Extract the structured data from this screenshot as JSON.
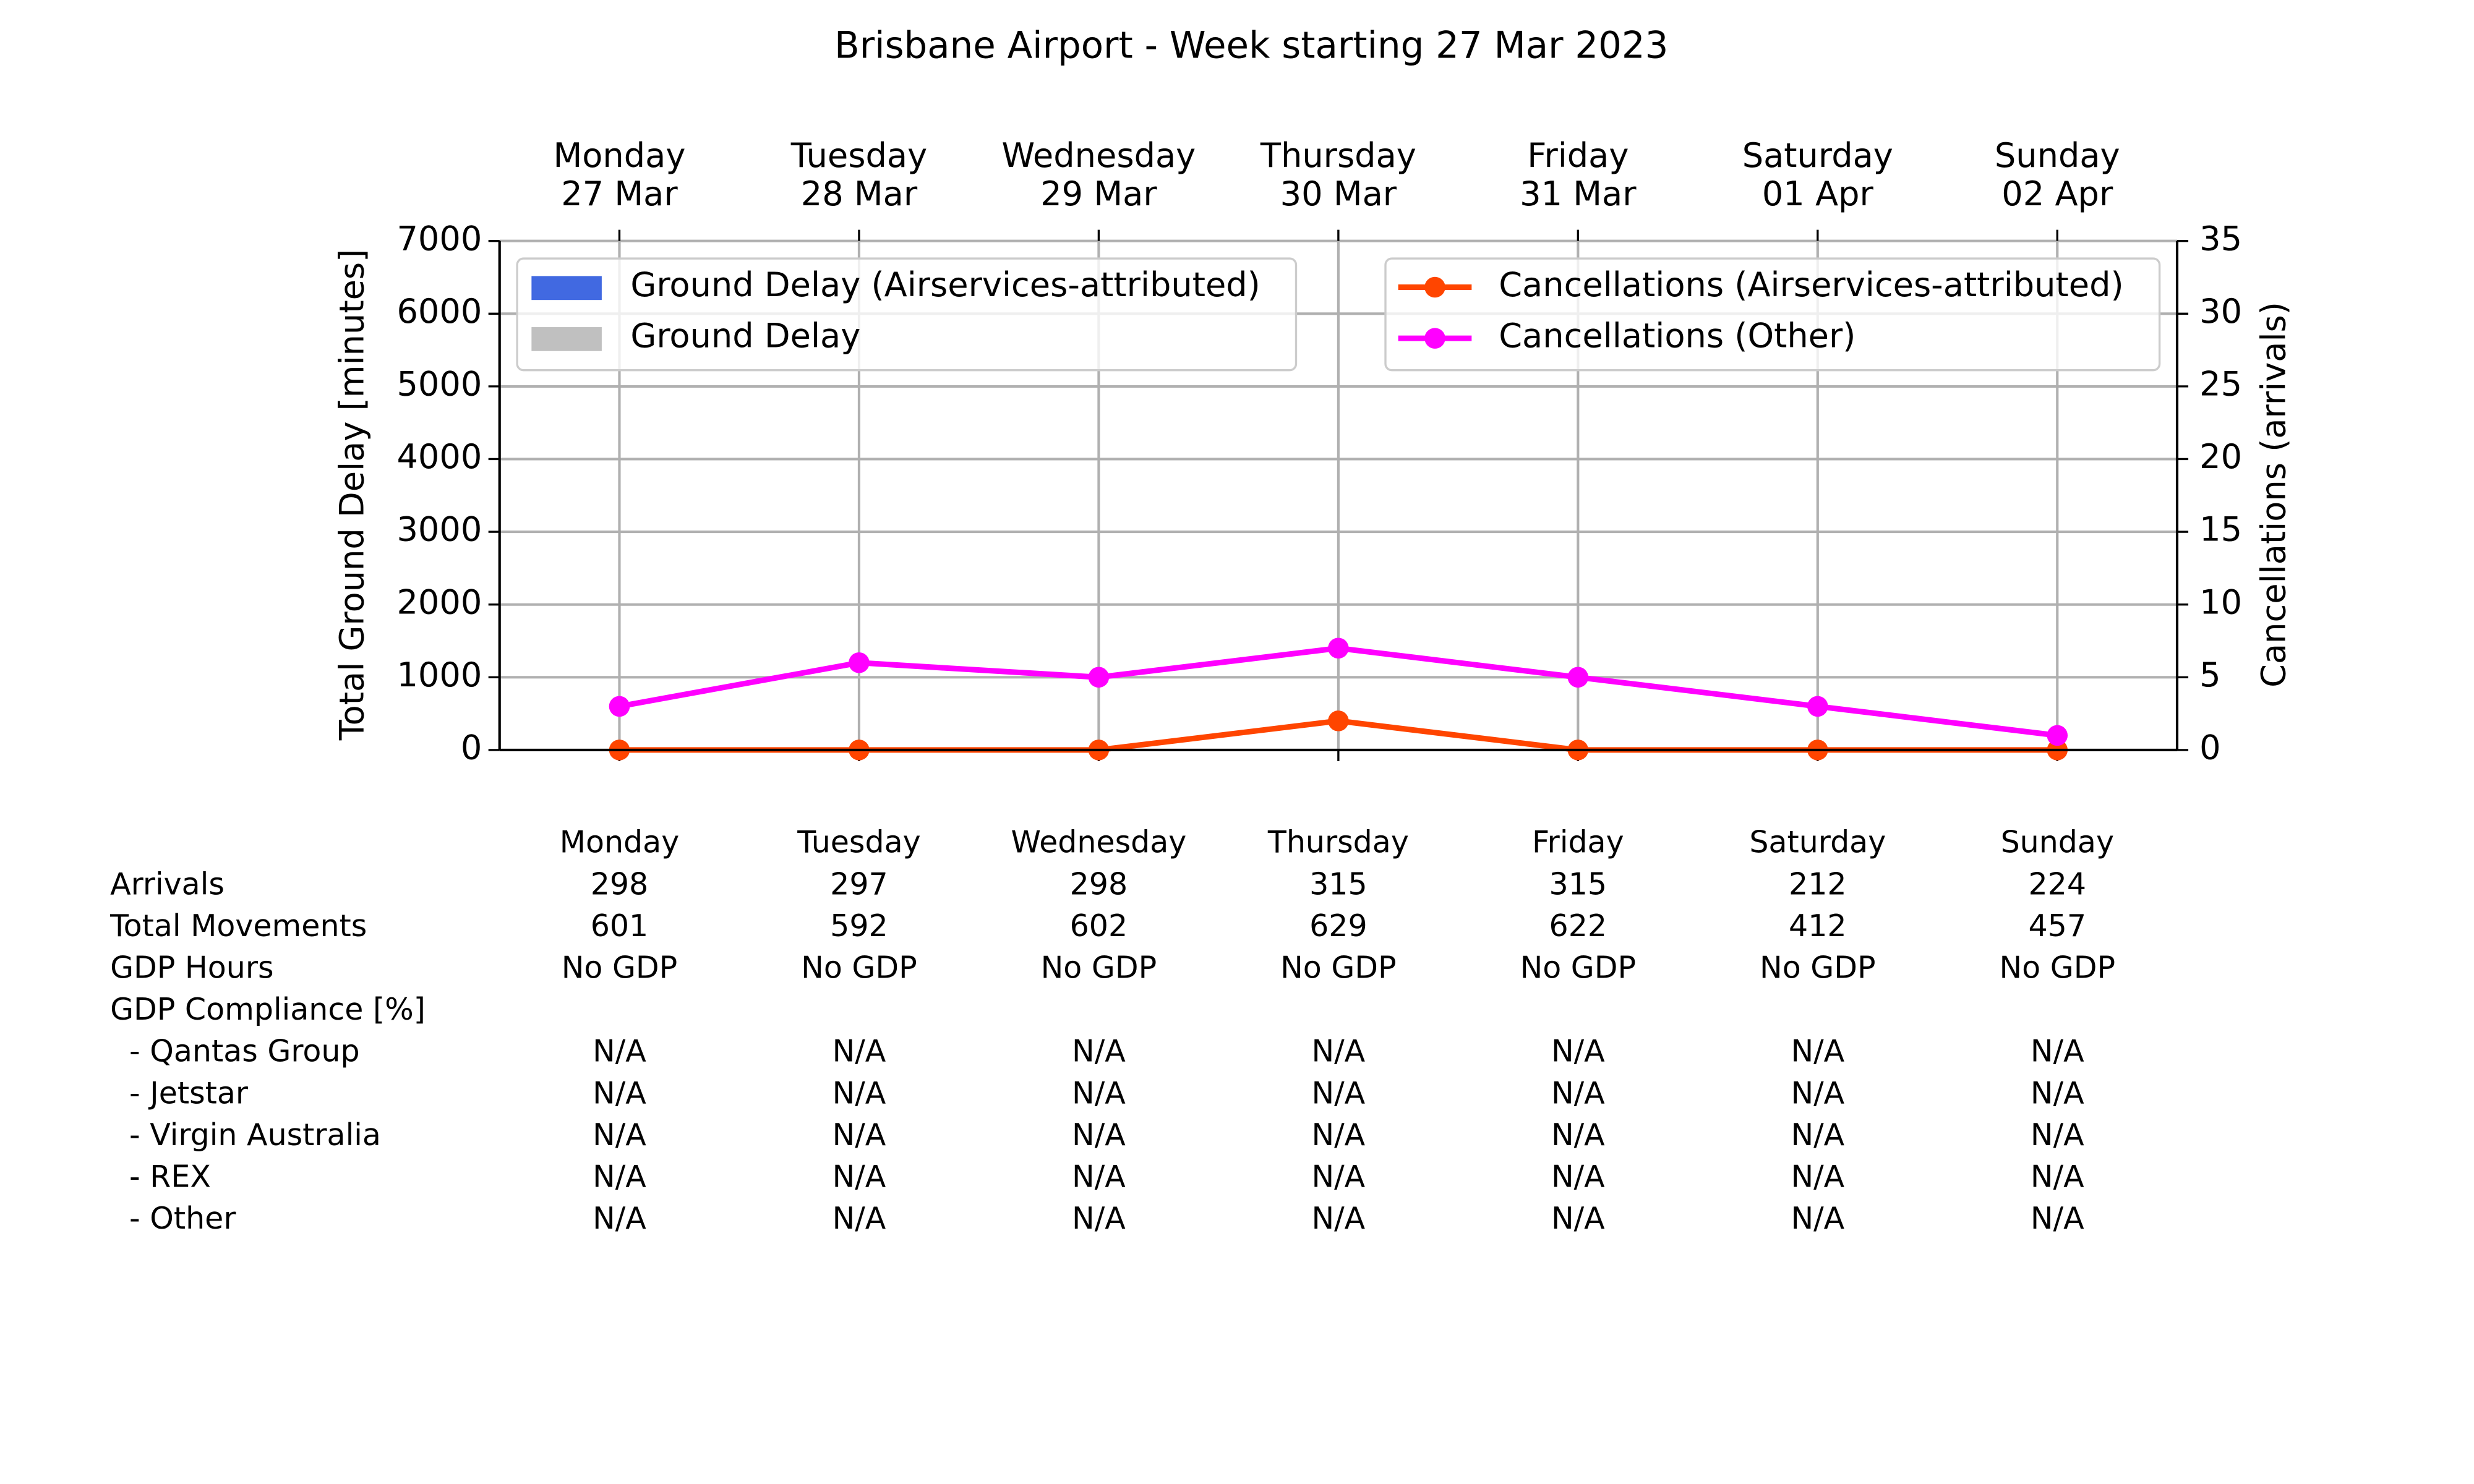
{
  "chart_data": {
    "type": "bar",
    "title": "Brisbane Airport - Week starting 27 Mar 2023",
    "categories": [
      "Monday",
      "Tuesday",
      "Wednesday",
      "Thursday",
      "Friday",
      "Saturday",
      "Sunday"
    ],
    "dates": [
      "27 Mar",
      "28 Mar",
      "29 Mar",
      "30 Mar",
      "31 Mar",
      "01 Apr",
      "02 Apr"
    ],
    "y_label": "Total Ground Delay [minutes]",
    "y2_label": "Cancellations (arrivals)",
    "ylim": [
      0,
      7000
    ],
    "yticks": [
      0,
      1000,
      2000,
      3000,
      4000,
      5000,
      6000,
      7000
    ],
    "y2lim": [
      0,
      35
    ],
    "y2ticks": [
      0,
      5,
      10,
      15,
      20,
      25,
      30,
      35
    ],
    "grid": true,
    "legend": "upper left",
    "legend2": "upper right",
    "series": [
      {
        "name": "Ground Delay (Airservices-attributed)",
        "type": "bar",
        "color": "#4169e1",
        "values": [
          0,
          0,
          0,
          0,
          0,
          0,
          0
        ]
      },
      {
        "name": "Ground Delay",
        "type": "bar",
        "color": "#c0c0c0",
        "values": [
          0,
          0,
          0,
          0,
          0,
          0,
          0
        ]
      },
      {
        "name": "Cancellations (Airservices-attributed)",
        "type": "line",
        "axis": "y2",
        "color": "#ff4500",
        "values": [
          0,
          0,
          0,
          2,
          0,
          0,
          0
        ]
      },
      {
        "name": "Cancellations (Other)",
        "type": "line",
        "axis": "y2",
        "color": "#ff00ff",
        "values": [
          3,
          6,
          5,
          7,
          5,
          3,
          1
        ]
      }
    ]
  },
  "table": {
    "columns": [
      "Monday",
      "Tuesday",
      "Wednesday",
      "Thursday",
      "Friday",
      "Saturday",
      "Sunday"
    ],
    "rows": [
      {
        "label": "Arrivals",
        "values": [
          298,
          297,
          298,
          315,
          315,
          212,
          224
        ]
      },
      {
        "label": "Total Movements",
        "values": [
          601,
          592,
          602,
          629,
          622,
          412,
          457
        ]
      },
      {
        "label": "GDP Hours",
        "values": [
          "No GDP",
          "No GDP",
          "No GDP",
          "No GDP",
          "No GDP",
          "No GDP",
          "No GDP"
        ]
      },
      {
        "label": "GDP Compliance [%]",
        "subrows": [
          {
            "label": "- Qantas Group",
            "values": [
              "N/A",
              "N/A",
              "N/A",
              "N/A",
              "N/A",
              "N/A",
              "N/A"
            ]
          },
          {
            "label": "- Jetstar",
            "values": [
              "N/A",
              "N/A",
              "N/A",
              "N/A",
              "N/A",
              "N/A",
              "N/A"
            ]
          },
          {
            "label": "- Virgin Australia",
            "values": [
              "N/A",
              "N/A",
              "N/A",
              "N/A",
              "N/A",
              "N/A",
              "N/A"
            ]
          },
          {
            "label": "- REX",
            "values": [
              "N/A",
              "N/A",
              "N/A",
              "N/A",
              "N/A",
              "N/A",
              "N/A"
            ]
          },
          {
            "label": "- Other",
            "values": [
              "N/A",
              "N/A",
              "N/A",
              "N/A",
              "N/A",
              "N/A",
              "N/A"
            ]
          }
        ]
      }
    ]
  }
}
